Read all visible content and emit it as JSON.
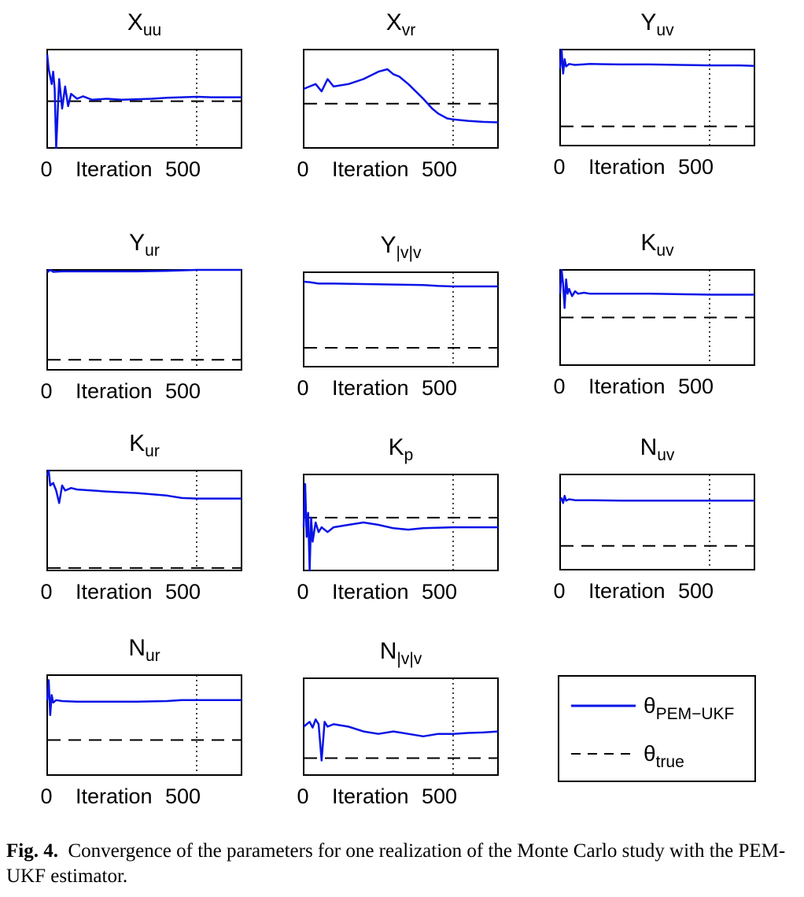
{
  "chart_data": [
    {
      "type": "line",
      "title": "X_uu",
      "title_base": "X",
      "title_sub": "uu",
      "x_tick_labels": [
        "0",
        "Iteration",
        "500"
      ],
      "vline_x": 500,
      "true_value": -0.05,
      "series": [
        {
          "name": "θ_PEM-UKF",
          "x": [
            0,
            5,
            10,
            15,
            20,
            25,
            30,
            40,
            50,
            60,
            70,
            80,
            100,
            120,
            150,
            200,
            250,
            300,
            350,
            400,
            450,
            500,
            550,
            600,
            650
          ],
          "values": [
            0.9,
            0.6,
            0.45,
            0.3,
            0.55,
            0.2,
            -1.0,
            0.4,
            -0.2,
            0.25,
            -0.15,
            0.1,
            0.0,
            0.05,
            -0.02,
            0.0,
            -0.02,
            -0.01,
            0.0,
            0.02,
            0.03,
            0.04,
            0.03,
            0.03,
            0.03
          ]
        }
      ]
    },
    {
      "type": "line",
      "title": "X_vr",
      "title_base": "X",
      "title_sub": "vr",
      "x_tick_labels": [
        "0",
        "Iteration",
        "500"
      ],
      "vline_x": 500,
      "true_value": -0.1,
      "series": [
        {
          "name": "θ_PEM-UKF",
          "x": [
            0,
            20,
            40,
            60,
            80,
            100,
            150,
            200,
            250,
            280,
            300,
            320,
            350,
            400,
            430,
            450,
            480,
            500,
            550,
            600,
            650
          ],
          "values": [
            0.2,
            0.25,
            0.3,
            0.15,
            0.4,
            0.25,
            0.3,
            0.4,
            0.55,
            0.6,
            0.5,
            0.45,
            0.3,
            0.0,
            -0.2,
            -0.3,
            -0.4,
            -0.42,
            -0.45,
            -0.47,
            -0.48
          ]
        }
      ]
    },
    {
      "type": "line",
      "title": "Y_uv",
      "title_base": "Y",
      "title_sub": "uv",
      "x_tick_labels": [
        "0",
        "Iteration",
        "500"
      ],
      "vline_x": 500,
      "true_value": -0.6,
      "series": [
        {
          "name": "θ_PEM-UKF",
          "x": [
            0,
            5,
            10,
            15,
            20,
            30,
            50,
            100,
            200,
            300,
            400,
            500,
            600,
            650
          ],
          "values": [
            0.6,
            1.0,
            0.5,
            0.8,
            0.65,
            0.7,
            0.68,
            0.7,
            0.69,
            0.69,
            0.68,
            0.67,
            0.67,
            0.66
          ]
        }
      ]
    },
    {
      "type": "line",
      "title": "Y_ur",
      "title_base": "Y",
      "title_sub": "ur",
      "x_tick_labels": [
        "0",
        "Iteration",
        "500"
      ],
      "vline_x": 500,
      "true_value": -0.8,
      "series": [
        {
          "name": "θ_PEM-UKF",
          "x": [
            0,
            10,
            20,
            50,
            100,
            200,
            300,
            400,
            450,
            500,
            550,
            650
          ],
          "values": [
            0.95,
            1.0,
            0.96,
            0.97,
            0.97,
            0.97,
            0.97,
            0.98,
            0.99,
            1.0,
            1.0,
            1.0
          ]
        }
      ]
    },
    {
      "type": "line",
      "title": "Y_|v|v",
      "title_base": "Y",
      "title_sub": "|v|v",
      "x_tick_labels": [
        "0",
        "Iteration",
        "500"
      ],
      "vline_x": 500,
      "true_value": -0.6,
      "series": [
        {
          "name": "θ_PEM-UKF",
          "x": [
            0,
            20,
            50,
            100,
            200,
            300,
            400,
            450,
            500,
            550,
            600,
            650
          ],
          "values": [
            0.8,
            0.79,
            0.76,
            0.76,
            0.75,
            0.74,
            0.73,
            0.71,
            0.7,
            0.7,
            0.7,
            0.7
          ]
        }
      ]
    },
    {
      "type": "line",
      "title": "K_uv",
      "title_base": "K",
      "title_sub": "uv",
      "x_tick_labels": [
        "0",
        "Iteration",
        "500"
      ],
      "vline_x": 500,
      "true_value": 0.0,
      "series": [
        {
          "name": "θ_PEM-UKF",
          "x": [
            0,
            5,
            10,
            15,
            20,
            25,
            30,
            40,
            50,
            60,
            80,
            100,
            200,
            300,
            400,
            500,
            600,
            650
          ],
          "values": [
            0.5,
            1.0,
            0.7,
            0.2,
            0.8,
            0.5,
            0.6,
            0.45,
            0.55,
            0.5,
            0.52,
            0.5,
            0.5,
            0.5,
            0.49,
            0.48,
            0.48,
            0.48
          ]
        }
      ]
    },
    {
      "type": "line",
      "title": "K_ur",
      "title_base": "K",
      "title_sub": "ur",
      "x_tick_labels": [
        "0",
        "Iteration",
        "500"
      ],
      "vline_x": 500,
      "true_value": -0.95,
      "series": [
        {
          "name": "θ_PEM-UKF",
          "x": [
            0,
            5,
            10,
            20,
            30,
            40,
            50,
            60,
            80,
            100,
            150,
            200,
            300,
            400,
            450,
            500,
            550,
            650
          ],
          "values": [
            0.9,
            1.0,
            0.7,
            0.75,
            0.6,
            0.35,
            0.7,
            0.6,
            0.65,
            0.62,
            0.6,
            0.58,
            0.55,
            0.5,
            0.45,
            0.44,
            0.44,
            0.44
          ]
        }
      ]
    },
    {
      "type": "line",
      "title": "K_p",
      "title_base": "K",
      "title_sub": "p",
      "x_tick_labels": [
        "0",
        "Iteration",
        "500"
      ],
      "vline_x": 500,
      "true_value": 0.1,
      "series": [
        {
          "name": "θ_PEM-UKF",
          "x": [
            0,
            5,
            10,
            15,
            20,
            25,
            30,
            40,
            50,
            60,
            80,
            100,
            150,
            200,
            250,
            300,
            350,
            400,
            500,
            600,
            650
          ],
          "values": [
            -0.1,
            0.8,
            -0.3,
            0.2,
            -1.0,
            0.1,
            -0.4,
            0.0,
            -0.2,
            -0.1,
            -0.2,
            -0.1,
            -0.05,
            0.0,
            -0.05,
            -0.12,
            -0.15,
            -0.12,
            -0.1,
            -0.1,
            -0.1
          ]
        }
      ]
    },
    {
      "type": "line",
      "title": "N_uv",
      "title_base": "N",
      "title_sub": "uv",
      "x_tick_labels": [
        "0",
        "Iteration",
        "500"
      ],
      "vline_x": 500,
      "true_value": -0.5,
      "series": [
        {
          "name": "θ_PEM-UKF",
          "x": [
            0,
            5,
            10,
            15,
            20,
            30,
            50,
            100,
            200,
            300,
            400,
            500,
            600,
            650
          ],
          "values": [
            0.45,
            0.5,
            0.4,
            0.55,
            0.45,
            0.48,
            0.46,
            0.46,
            0.45,
            0.45,
            0.45,
            0.45,
            0.45,
            0.45
          ]
        }
      ]
    },
    {
      "type": "line",
      "title": "N_ur",
      "title_base": "N",
      "title_sub": "ur",
      "x_tick_labels": [
        "0",
        "Iteration",
        "500"
      ],
      "vline_x": 500,
      "true_value": -0.3,
      "series": [
        {
          "name": "θ_PEM-UKF",
          "x": [
            0,
            5,
            10,
            15,
            20,
            30,
            50,
            100,
            200,
            300,
            400,
            450,
            500,
            600,
            650
          ],
          "values": [
            0.5,
            0.9,
            0.2,
            0.6,
            0.45,
            0.5,
            0.48,
            0.47,
            0.47,
            0.47,
            0.48,
            0.5,
            0.5,
            0.5,
            0.5
          ]
        }
      ]
    },
    {
      "type": "line",
      "title": "N_|v|v",
      "title_base": "N",
      "title_sub": "|v|v",
      "x_tick_labels": [
        "0",
        "Iteration",
        "500"
      ],
      "vline_x": 500,
      "true_value": -0.65,
      "series": [
        {
          "name": "θ_PEM-UKF",
          "x": [
            0,
            10,
            20,
            30,
            40,
            50,
            60,
            70,
            80,
            100,
            150,
            200,
            250,
            300,
            350,
            400,
            450,
            500,
            550,
            600,
            650
          ],
          "values": [
            0.0,
            0.05,
            0.1,
            -0.02,
            0.15,
            0.05,
            -0.7,
            0.1,
            0.0,
            0.05,
            0.0,
            -0.1,
            -0.15,
            -0.1,
            -0.15,
            -0.2,
            -0.15,
            -0.15,
            -0.13,
            -0.12,
            -0.1
          ]
        }
      ]
    }
  ],
  "legend": {
    "entries": [
      {
        "base": "θ",
        "sub": "PEM−UKF",
        "style": "solid",
        "color": "#0a14e6"
      },
      {
        "base": "θ",
        "sub": "true",
        "style": "dashed",
        "color": "#000000"
      }
    ]
  },
  "colors": {
    "estimate": "#0a14e6",
    "true_value": "#000000",
    "vline": "#000000"
  },
  "caption": {
    "label": "Fig. 4.",
    "text": "Convergence of the parameters for one realization of the Monte Carlo study with the PEM-UKF estimator."
  }
}
